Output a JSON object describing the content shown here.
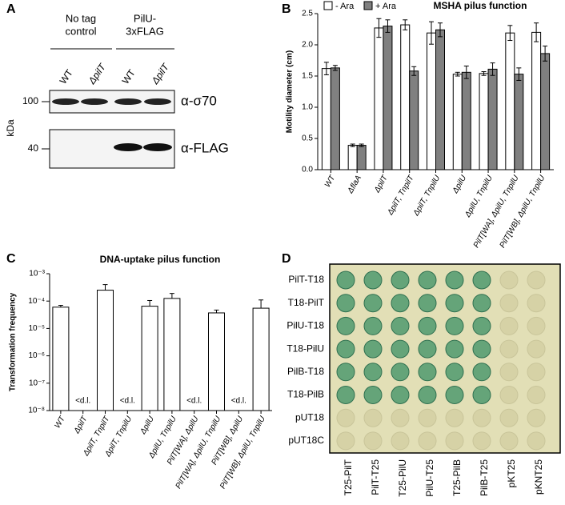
{
  "panel_a": {
    "label": "A",
    "groups": [
      [
        "No tag",
        "control"
      ],
      [
        "PilU-",
        "3xFLAG"
      ]
    ],
    "lanes": [
      "WT",
      "ΔpilT",
      "WT",
      "ΔpilT"
    ],
    "markers": [
      "100",
      "40"
    ],
    "unit": "kDa",
    "antibodies": [
      "α-σ70",
      "α-FLAG"
    ]
  },
  "chart_data": [
    {
      "type": "bar",
      "panel_label": "B",
      "title": "MSHA pilus function",
      "y_label": "Motility diameter (cm)",
      "categories": [
        "WT",
        "ΔflaA",
        "ΔpilT",
        "ΔpilT, TnpilT",
        "ΔpilT, TnpilU",
        "ΔpilU",
        "ΔpilU, TnpilU",
        "PilT[WA], ΔpilU, TnpilU",
        "PilT[WB], ΔpilU, TnpilU"
      ],
      "series": [
        {
          "name": "- Ara",
          "color": "#ffffff",
          "values": [
            1.62,
            0.39,
            2.27,
            2.32,
            2.19,
            1.53,
            1.54,
            2.19,
            2.2
          ],
          "errors": [
            0.1,
            0.02,
            0.15,
            0.08,
            0.18,
            0.03,
            0.03,
            0.12,
            0.15
          ]
        },
        {
          "name": "+ Ara",
          "color": "#808080",
          "values": [
            1.63,
            0.39,
            2.3,
            1.58,
            2.24,
            1.56,
            1.61,
            1.53,
            1.86
          ],
          "errors": [
            0.04,
            0.02,
            0.1,
            0.07,
            0.11,
            0.1,
            0.1,
            0.1,
            0.12
          ]
        }
      ],
      "ylim": [
        0,
        2.5
      ],
      "yticks": [
        {
          "value": 0,
          "label": "0.0"
        },
        0.5,
        {
          "value": 1,
          "label": "1.0"
        },
        1.5,
        {
          "value": 2,
          "label": "2.0"
        },
        2.5
      ],
      "log_scale": false
    },
    {
      "type": "bar",
      "panel_label": "C",
      "title": "DNA-uptake pilus function",
      "y_label": "Transformation frequency",
      "categories": [
        "WT",
        "ΔpilT",
        "ΔpilT, TnpilT",
        "ΔpilT, TnpilU",
        "ΔpilU",
        "ΔpilU, TnpilU",
        "PilT[WA], ΔpilU",
        "PilT[WA], ΔpilU, TnpilU",
        "PilT[WB], ΔpilU",
        "PilT[WB], ΔpilU, TnpilU"
      ],
      "series": [
        {
          "color": "#ffffff",
          "values": [
            6e-05,
            null,
            0.00025,
            null,
            6.5e-05,
            0.000125,
            null,
            3.7e-05,
            null,
            5.5e-05
          ],
          "errors": [
            1e-05,
            null,
            0.00015,
            null,
            4e-05,
            6.5e-05,
            null,
            1e-05,
            null,
            5.5e-05
          ],
          "value_labels": [
            null,
            "<d.l.",
            null,
            "<d.l.",
            null,
            null,
            "<d.l.",
            null,
            "<d.l.",
            null
          ]
        }
      ],
      "ylim": [
        1e-08,
        0.001
      ],
      "yticks": [
        {
          "value": 1e-08,
          "label": "10⁻⁸"
        },
        {
          "value": 1e-07,
          "label": "10⁻⁷"
        },
        {
          "value": 1e-06,
          "label": "10⁻⁶"
        },
        {
          "value": 1e-05,
          "label": "10⁻⁵"
        },
        {
          "value": 0.0001,
          "label": "10⁻⁴"
        },
        {
          "value": 0.001,
          "label": "10⁻³"
        }
      ],
      "log_scale": true
    }
  ],
  "panel_d": {
    "label": "D",
    "rows": [
      "PilT-T18",
      "T18-PilT",
      "PilU-T18",
      "T18-PilU",
      "PilB-T18",
      "T18-PilB",
      "pUT18",
      "pUT18C"
    ],
    "columns": [
      "T25-PilT",
      "PilT-T25",
      "T25-PilU",
      "PilU-T25",
      "T25-PilB",
      "PilB-T25",
      "pKT25",
      "pKNT25"
    ]
  }
}
